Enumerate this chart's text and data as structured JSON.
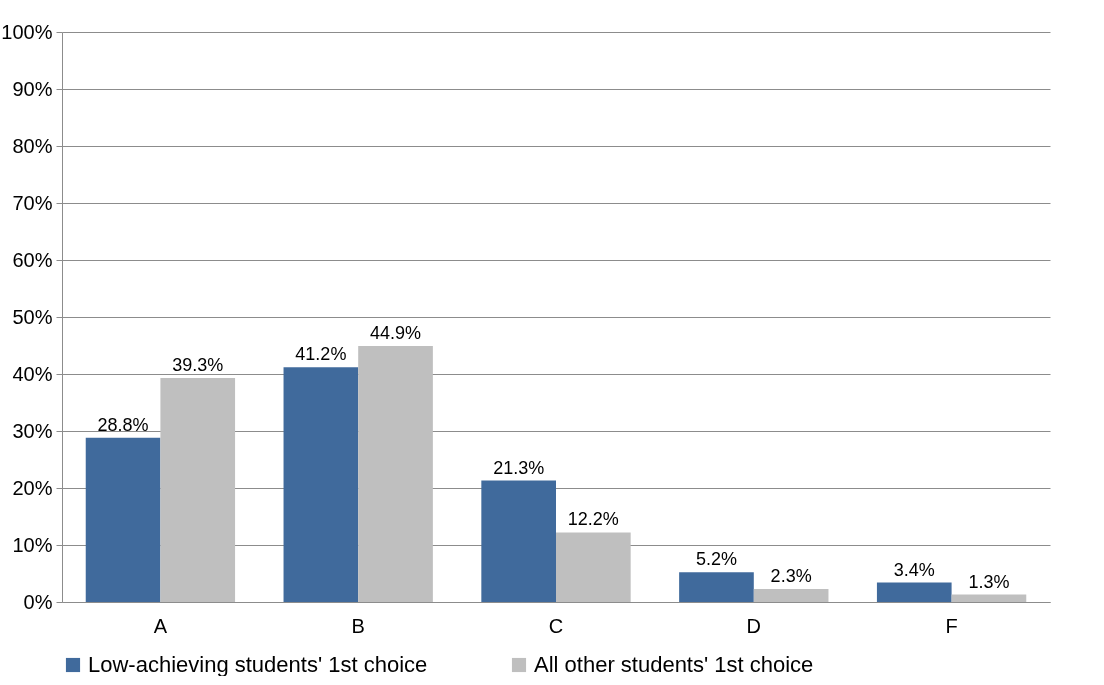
{
  "chart_data": {
    "type": "bar",
    "categories": [
      "A",
      "B",
      "C",
      "D",
      "F"
    ],
    "series": [
      {
        "name": "Low-achieving students' 1st choice",
        "color": "#406a9c",
        "values": [
          28.8,
          41.2,
          21.3,
          5.2,
          3.4
        ],
        "value_labels": [
          "28.8%",
          "41.2%",
          "21.3%",
          "5.2%",
          "3.4%"
        ]
      },
      {
        "name": "All other students' 1st choice",
        "color": "#bfbfbf",
        "values": [
          39.3,
          44.9,
          12.2,
          2.3,
          1.3
        ],
        "value_labels": [
          "39.3%",
          "44.9%",
          "12.2%",
          "2.3%",
          "1.3%"
        ]
      }
    ],
    "ylim": [
      0,
      100
    ],
    "yticks": [
      {
        "value": 0,
        "label": "0%"
      },
      {
        "value": 10,
        "label": "10%"
      },
      {
        "value": 20,
        "label": "20%"
      },
      {
        "value": 30,
        "label": "30%"
      },
      {
        "value": 40,
        "label": "40%"
      },
      {
        "value": 50,
        "label": "50%"
      },
      {
        "value": 60,
        "label": "60%"
      },
      {
        "value": 70,
        "label": "70%"
      },
      {
        "value": 80,
        "label": "80%"
      },
      {
        "value": 90,
        "label": "90%"
      },
      {
        "value": 100,
        "label": "100%"
      }
    ],
    "grid": "y",
    "legend": "bottom"
  }
}
